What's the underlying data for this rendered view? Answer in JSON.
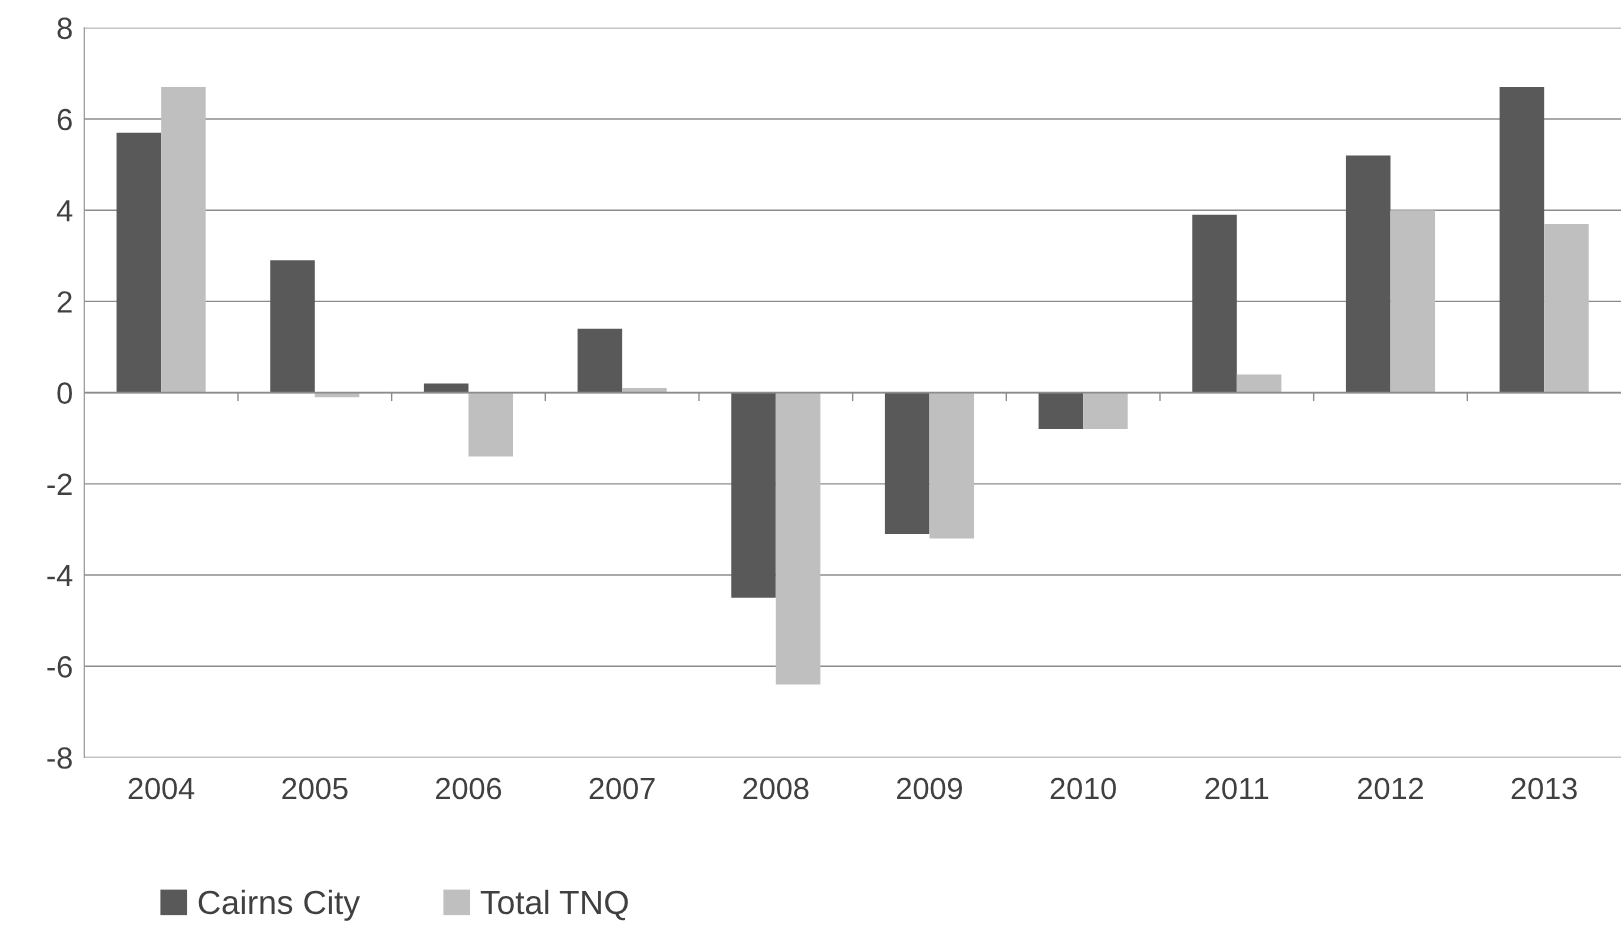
{
  "chart_data": {
    "type": "bar",
    "categories": [
      "2004",
      "2005",
      "2006",
      "2007",
      "2008",
      "2009",
      "2010",
      "2011",
      "2012",
      "2013"
    ],
    "series": [
      {
        "name": "Cairns City",
        "color": "#595959",
        "values": [
          5.7,
          2.9,
          0.2,
          1.4,
          -4.5,
          -3.1,
          -0.8,
          3.9,
          5.2,
          6.7
        ]
      },
      {
        "name": "Total TNQ",
        "color": "#bfbfbf",
        "values": [
          6.7,
          -0.1,
          -1.4,
          0.1,
          -6.4,
          -3.2,
          -0.8,
          0.4,
          4.0,
          3.7
        ]
      }
    ],
    "ylim": [
      -8,
      8
    ],
    "yticks": [
      -8,
      -6,
      -4,
      -2,
      0,
      2,
      4,
      6,
      8
    ],
    "grid": "y",
    "legend": "bottom left"
  }
}
